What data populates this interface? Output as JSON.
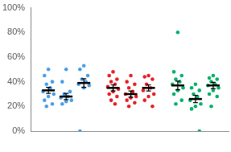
{
  "chart_data": {
    "type": "scatter",
    "tick_labels": "y",
    "grid": false,
    "xlim": [
      0,
      11.2
    ],
    "ylim": [
      0,
      100
    ],
    "yticks": [
      {
        "value": 0,
        "label": "0%"
      },
      {
        "value": 20,
        "label": "20%"
      },
      {
        "value": 40,
        "label": "40%"
      },
      {
        "value": 60,
        "label": "60%"
      },
      {
        "value": 80,
        "label": "80%"
      },
      {
        "value": 100,
        "label": "100%"
      }
    ],
    "series": [
      {
        "color": "#4a9fe8",
        "x": 1,
        "values": [
          50,
          45,
          40,
          38,
          35,
          32,
          30,
          28,
          25,
          22,
          20
        ],
        "mean": 33,
        "error": 2.5
      },
      {
        "color": "#4a9fe8",
        "x": 2,
        "values": [
          50,
          40,
          32,
          30,
          28,
          27,
          25,
          24,
          22
        ],
        "mean": 28,
        "error": 2.5
      },
      {
        "color": "#4a9fe8",
        "x": 3,
        "values": [
          53,
          50,
          45,
          42,
          40,
          38,
          37,
          35,
          0
        ],
        "mean": 39,
        "error": 3.5
      },
      {
        "color": "#e8202a",
        "x": 4.65,
        "values": [
          48,
          45,
          42,
          40,
          38,
          36,
          34,
          32,
          30,
          28,
          25,
          22
        ],
        "mean": 35,
        "error": 2.5
      },
      {
        "color": "#e8202a",
        "x": 5.65,
        "values": [
          45,
          40,
          38,
          35,
          32,
          30,
          28,
          27,
          25,
          23,
          20
        ],
        "mean": 30,
        "error": 2.5
      },
      {
        "color": "#e8202a",
        "x": 6.65,
        "values": [
          45,
          44,
          42,
          38,
          35,
          33,
          30,
          28,
          25,
          20
        ],
        "mean": 35,
        "error": 2.5
      },
      {
        "color": "#00b26a",
        "x": 8.3,
        "values": [
          80,
          48,
          45,
          42,
          40,
          38,
          35,
          33,
          30,
          25,
          22
        ],
        "mean": 37,
        "error": 3.5
      },
      {
        "color": "#00b26a",
        "x": 9.3,
        "values": [
          38,
          35,
          33,
          30,
          28,
          25,
          22,
          20,
          18,
          0
        ],
        "mean": 26,
        "error": 3
      },
      {
        "color": "#00b26a",
        "x": 10.3,
        "values": [
          45,
          43,
          42,
          40,
          38,
          37,
          35,
          33,
          30,
          28,
          20
        ],
        "mean": 37,
        "error": 2.5
      }
    ]
  }
}
